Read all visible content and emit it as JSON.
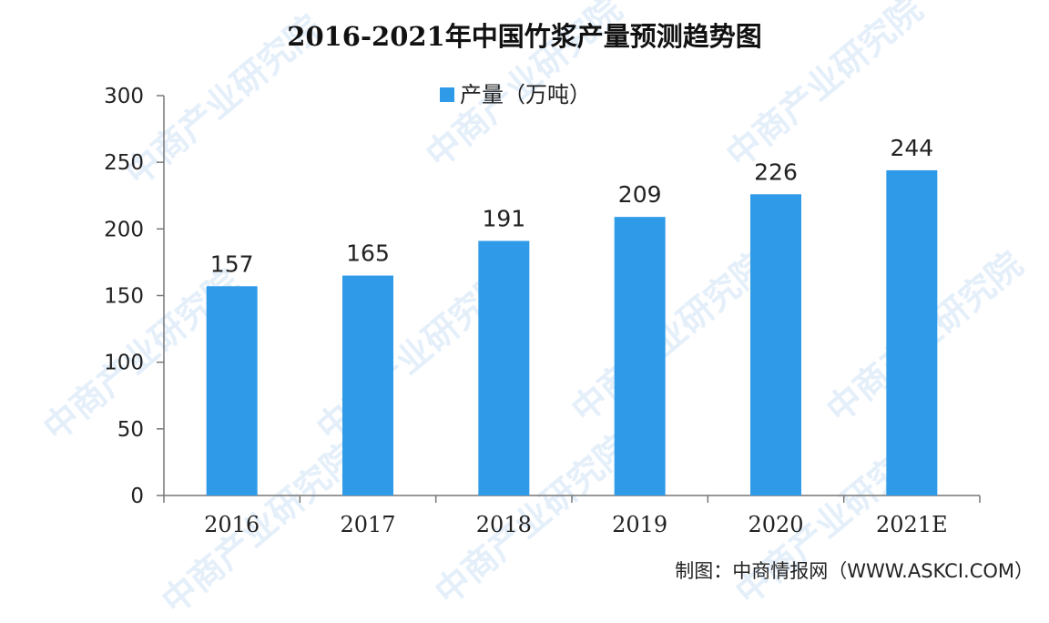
{
  "chart_data": {
    "type": "bar",
    "title": "2016-2021年中国竹浆产量预测趋势图",
    "categories": [
      "2016",
      "2017",
      "2018",
      "2019",
      "2020",
      "2021E"
    ],
    "series": [
      {
        "name": "产量（万吨）",
        "values": [
          157,
          165,
          191,
          209,
          226,
          244
        ],
        "color": "#2f9be8"
      }
    ],
    "yticks": [
      "0",
      "50",
      "100",
      "150",
      "200",
      "250",
      "300"
    ],
    "ylim": [
      0,
      300
    ],
    "legend": "top-center",
    "grid": false
  },
  "source": "制图：中商情报网（WWW.ASKCI.COM）",
  "watermark": "中商产业研究院"
}
